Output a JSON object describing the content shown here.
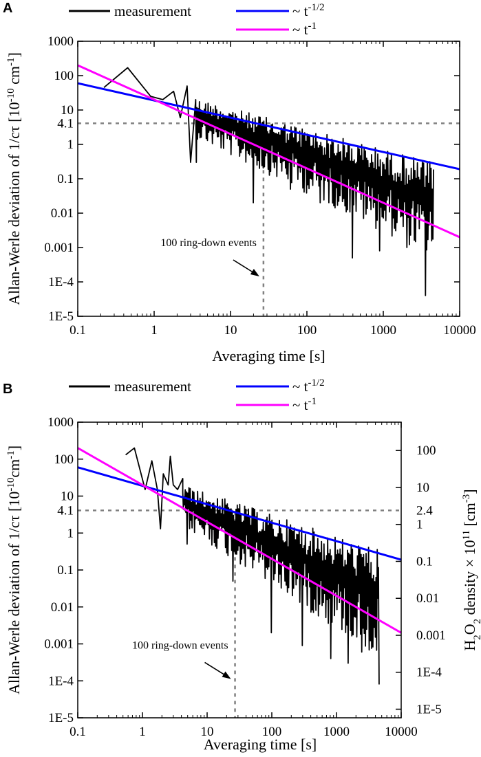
{
  "chart_data": [
    {
      "panel": "A",
      "type": "line",
      "xscale": "log",
      "yscale": "log",
      "xlabel": "Averaging time [s]",
      "ylabel": "Allan-Werle deviation of 1/cτ",
      "ylabel_unit_base": "[10",
      "ylabel_unit_exp": "-10",
      "ylabel_unit_mid": " cm",
      "ylabel_unit_exp2": "-1",
      "ylabel_unit_end": "]",
      "xlim": [
        0.1,
        10000
      ],
      "ylim": [
        1e-05,
        1000
      ],
      "xticks": [
        0.1,
        1,
        10,
        100,
        1000,
        10000
      ],
      "xtick_labels": [
        "0.1",
        "1",
        "10",
        "100",
        "1000",
        "10000"
      ],
      "yticks": [
        1000,
        100,
        10,
        4.1,
        1,
        0.1,
        0.01,
        0.001,
        0.0001,
        1e-05
      ],
      "ytick_labels": [
        "1000",
        "100",
        "10",
        "4.1",
        "1",
        "0.1",
        "0.01",
        "0.001",
        "1E-4",
        "1E-5"
      ],
      "legend": [
        {
          "label": "measurement",
          "color": "#000000",
          "exp": ""
        },
        {
          "label": "~ t",
          "color": "#0000ff",
          "exp": "-1/2"
        },
        {
          "label": "~ t",
          "color": "#ff00ff",
          "exp": "-1"
        }
      ],
      "reference_lines": {
        "y": 4.1,
        "x": 27
      },
      "annotation": {
        "text": "100 ring-down events",
        "target_x": 27,
        "target_y": 0.0001
      },
      "series": [
        {
          "name": "~ t^-1/2",
          "color": "#0000ff",
          "x": [
            0.1,
            10000
          ],
          "y": [
            60,
            0.19
          ]
        },
        {
          "name": "~ t^-1",
          "color": "#ff00ff",
          "x": [
            0.1,
            10000
          ],
          "y": [
            200,
            0.002
          ]
        },
        {
          "name": "measurement",
          "color": "#000000",
          "x": [
            0.22,
            0.45,
            0.9,
            1.3,
            1.8,
            2.2,
            2.7,
            3.0,
            3.5
          ],
          "y": [
            45,
            170,
            25,
            20,
            35,
            6,
            50,
            0.3,
            20
          ],
          "noise_band": {
            "x_start": 3.5,
            "x_end": 4600,
            "upper": {
              "x": [
                3.5,
                4600
              ],
              "y": [
                22,
                0.3
              ]
            },
            "lower": {
              "x": [
                3.5,
                4600
              ],
              "y": [
                1.5,
                0.0005
              ]
            },
            "dips": [
              [
                3.5,
                0.3
              ],
              [
                20,
                0.02
              ],
              [
                60,
                0.05
              ],
              [
                150,
                0.02
              ],
              [
                400,
                0.0005
              ],
              [
                900,
                0.0008
              ],
              [
                2000,
                0.001
              ],
              [
                3500,
                4e-05
              ]
            ]
          }
        }
      ]
    },
    {
      "panel": "B",
      "type": "line",
      "xscale": "log",
      "yscale": "log",
      "xlabel": "Averaging time [s]",
      "ylabel": "Allan-Werle deviation of 1/cτ",
      "ylabel_unit_base": "[10",
      "ylabel_unit_exp": "-10",
      "ylabel_unit_mid": "cm",
      "ylabel_unit_exp2": "-1",
      "ylabel_unit_end": "]",
      "y2label_pre": "H",
      "y2label_sub1": "2",
      "y2label_mid": "O",
      "y2label_sub2": "2",
      "y2label_post": " density × 10",
      "y2label_exp": "11",
      "y2label_unit": " [cm",
      "y2label_unit_exp": "-3",
      "y2label_end": "]",
      "xlim": [
        0.1,
        10000
      ],
      "ylim": [
        1e-05,
        1000
      ],
      "xticks": [
        0.1,
        1,
        10,
        100,
        1000,
        10000
      ],
      "xtick_labels": [
        "0.1",
        "1",
        "10",
        "100",
        "1000",
        "10000"
      ],
      "yticks": [
        1000,
        100,
        10,
        4.1,
        1,
        0.1,
        0.01,
        0.001,
        0.0001,
        1e-05
      ],
      "ytick_labels": [
        "1000",
        "100",
        "10",
        "4.1",
        "1",
        "0.1",
        "0.01",
        "0.001",
        "1E-4",
        "1E-5"
      ],
      "y2ticks": [
        100,
        10,
        2.4,
        1,
        0.1,
        0.01,
        0.001,
        0.0001,
        1e-05
      ],
      "y2tick_labels": [
        "100",
        "10",
        "2.4",
        "1",
        "0.1",
        "0.01",
        "0.001",
        "1E-4",
        "1E-5"
      ],
      "y2_positions_left_units": [
        171,
        17.1,
        4.1,
        1.71,
        0.171,
        0.0171,
        0.00171,
        0.000171,
        1.71e-05
      ],
      "legend": [
        {
          "label": "measurement",
          "color": "#000000",
          "exp": ""
        },
        {
          "label": "~ t",
          "color": "#0000ff",
          "exp": "-1/2"
        },
        {
          "label": "~ t",
          "color": "#ff00ff",
          "exp": "-1"
        }
      ],
      "reference_lines": {
        "y": 4.1,
        "x": 27
      },
      "annotation": {
        "text": "100 ring-down events",
        "target_x": 27,
        "target_y": 8e-05
      },
      "series": [
        {
          "name": "~ t^-1/2",
          "color": "#0000ff",
          "x": [
            0.1,
            10000
          ],
          "y": [
            60,
            0.19
          ]
        },
        {
          "name": "~ t^-1",
          "color": "#ff00ff",
          "x": [
            0.1,
            10000
          ],
          "y": [
            200,
            0.002
          ]
        },
        {
          "name": "measurement",
          "color": "#000000",
          "x": [
            0.55,
            0.75,
            1.1,
            1.4,
            1.7,
            1.9,
            2.1,
            2.5,
            2.7,
            3.0,
            3.5,
            4.2
          ],
          "y": [
            130,
            200,
            15,
            90,
            15,
            1.3,
            40,
            20,
            120,
            20,
            15,
            30
          ],
          "noise_band": {
            "x_start": 4.2,
            "x_end": 4600,
            "upper": {
              "x": [
                4.2,
                4600
              ],
              "y": [
                20,
                0.35
              ]
            },
            "lower": {
              "x": [
                4.2,
                4600
              ],
              "y": [
                1.5,
                0.0004
              ]
            },
            "dips": [
              [
                5,
                0.5
              ],
              [
                25,
                0.05
              ],
              [
                100,
                0.002
              ],
              [
                300,
                0.0009
              ],
              [
                800,
                0.0004
              ],
              [
                1500,
                0.0003
              ],
              [
                2500,
                0.0006
              ],
              [
                4500,
                8e-05
              ]
            ]
          }
        }
      ]
    }
  ]
}
